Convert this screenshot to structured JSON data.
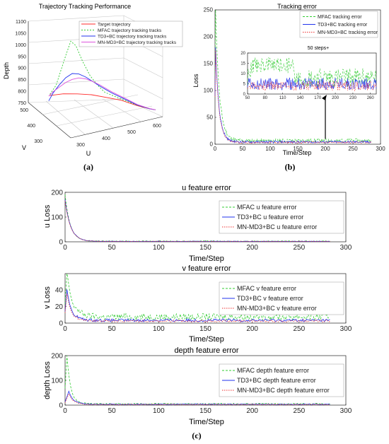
{
  "panel_labels": {
    "a": "(a)",
    "b": "(b)",
    "c": "(c)"
  },
  "colors": {
    "target": "#ff2a2a",
    "mfac": "#33cc33",
    "td3": "#2233ee",
    "mnmd3": "#ee3333",
    "mnmd3_traj": "#dd55dd",
    "axis": "#262626",
    "grid": "#e6e6e6",
    "arrow": "#000000"
  },
  "chart_data": [
    {
      "id": "a",
      "type": "line3d",
      "title": "Trajectory Tracking Performance",
      "xlabel": "U",
      "ylabel": "V",
      "zlabel": "Depth",
      "u_ticks": [
        "300",
        "400",
        "500",
        "600"
      ],
      "v_ticks": [
        "300",
        "400",
        "500"
      ],
      "z_ticks": [
        "750",
        "800",
        "850",
        "900",
        "950",
        "1000",
        "1050",
        "1100"
      ],
      "xlim": [
        250,
        620
      ],
      "ylim": [
        250,
        520
      ],
      "zlim": [
        750,
        1100
      ],
      "legend": "top-right",
      "series": [
        {
          "name": "Target trajectory",
          "u": [
            320,
            360,
            400,
            440,
            480,
            520,
            560,
            590,
            605
          ],
          "v": [
            480,
            470,
            455,
            440,
            420,
            400,
            370,
            350,
            340
          ],
          "depth": [
            800,
            802,
            800,
            795,
            785,
            775,
            760,
            752,
            750
          ]
        },
        {
          "name": "MFAC trajectory tracking tracks",
          "u": [
            320,
            340,
            355,
            370,
            385,
            400,
            420,
            440,
            460,
            480,
            520,
            560,
            590,
            605
          ],
          "v": [
            480,
            478,
            476,
            474,
            470,
            465,
            460,
            450,
            440,
            430,
            400,
            370,
            350,
            340
          ],
          "depth": [
            805,
            840,
            900,
            960,
            1020,
            1000,
            930,
            870,
            830,
            800,
            780,
            762,
            752,
            750
          ]
        },
        {
          "name": "TD3+BC trajectory tracking tracks",
          "u": [
            315,
            330,
            350,
            370,
            390,
            410,
            430,
            450,
            470,
            500,
            530,
            560,
            590,
            605
          ],
          "v": [
            478,
            478,
            476,
            474,
            470,
            466,
            460,
            452,
            444,
            425,
            400,
            372,
            350,
            340
          ],
          "depth": [
            780,
            810,
            840,
            865,
            880,
            875,
            860,
            840,
            820,
            795,
            778,
            762,
            752,
            750
          ]
        },
        {
          "name": "MN-MD3+BC trajectory tracking tracks",
          "u": [
            315,
            330,
            350,
            370,
            390,
            410,
            430,
            450,
            470,
            500,
            530,
            560,
            590,
            605
          ],
          "v": [
            478,
            478,
            476,
            474,
            470,
            466,
            460,
            452,
            444,
            425,
            400,
            372,
            350,
            340
          ],
          "depth": [
            800,
            815,
            830,
            845,
            855,
            858,
            852,
            840,
            825,
            800,
            782,
            764,
            753,
            750
          ]
        }
      ]
    },
    {
      "id": "b",
      "type": "line",
      "title": "Tracking error",
      "xlabel": "Time/Step",
      "ylabel": "Loss",
      "xlim": [
        0,
        300
      ],
      "ylim": [
        0,
        250
      ],
      "xticks": [
        0,
        50,
        100,
        150,
        200,
        250,
        300
      ],
      "yticks": [
        0,
        50,
        100,
        150,
        200,
        250
      ],
      "legend": "top-right",
      "series": [
        {
          "name": "MFAC tracking error",
          "peak": 250,
          "peak_x": 1,
          "decay": 7,
          "base": 8
        },
        {
          "name": "TD3+BC tracking error",
          "peak": 180,
          "peak_x": 1,
          "decay": 6.5,
          "base": 5
        },
        {
          "name": "MN-MD3+BC tracking error",
          "peak": 175,
          "peak_x": 1,
          "decay": 6.3,
          "base": 4
        }
      ],
      "inset": {
        "title": "50 steps+",
        "xlim": [
          50,
          270
        ],
        "ylim": [
          0,
          20
        ],
        "xticks": [
          50,
          80,
          110,
          140,
          170,
          200,
          230,
          260
        ],
        "yticks": [
          0,
          5,
          10,
          15,
          20
        ],
        "arrow_to": [
          200,
          12
        ]
      }
    },
    {
      "id": "c1",
      "type": "line",
      "title": "u feature error",
      "xlabel": "Time/Step",
      "ylabel": "u Loss",
      "xlim": [
        0,
        300
      ],
      "ylim": [
        0,
        200
      ],
      "xticks": [
        0,
        50,
        100,
        150,
        200,
        250,
        300
      ],
      "yticks": [
        0,
        100,
        200
      ],
      "legend": "top-right",
      "series": [
        {
          "name": "MFAC u feature error",
          "peak": 190,
          "peak_x": 0,
          "decay": 5.5,
          "base": 3
        },
        {
          "name": "TD3+BC u feature error",
          "peak": 170,
          "peak_x": 0,
          "decay": 6,
          "base": 2
        },
        {
          "name": "MN-MD3+BC u feature error",
          "peak": 165,
          "peak_x": 0,
          "decay": 6,
          "base": 2
        }
      ]
    },
    {
      "id": "c2",
      "type": "line",
      "title": "v feature error",
      "xlabel": "Time/Step",
      "ylabel": "v Loss",
      "xlim": [
        0,
        300
      ],
      "ylim": [
        0,
        60
      ],
      "xticks": [
        0,
        50,
        100,
        150,
        200,
        250,
        300
      ],
      "yticks": [
        0,
        20,
        40
      ],
      "legend": "top-right",
      "series": [
        {
          "name": "MFAC v feature error",
          "peak": 60,
          "peak_x": 2,
          "decay": 6,
          "base": 9
        },
        {
          "name": "TD3+BC v feature error",
          "peak": 40,
          "peak_x": 2,
          "decay": 5,
          "base": 4
        },
        {
          "name": "MN-MD3+BC v feature error",
          "peak": 35,
          "peak_x": 2,
          "decay": 5,
          "base": 3
        }
      ]
    },
    {
      "id": "c3",
      "type": "line",
      "title": "depth feature error",
      "xlabel": "Time/Step",
      "ylabel": "depth Loss",
      "xlim": [
        0,
        300
      ],
      "ylim": [
        0,
        200
      ],
      "xticks": [
        0,
        50,
        100,
        150,
        200,
        250,
        300
      ],
      "yticks": [
        0,
        100,
        200
      ],
      "legend": "top-right",
      "series": [
        {
          "name": "MFAC depth feature error",
          "peak": 200,
          "peak_x": 2,
          "decay": 4,
          "base": 6
        },
        {
          "name": "TD3+BC depth feature error",
          "peak": 55,
          "peak_x": 4,
          "decay": 5,
          "base": 4
        },
        {
          "name": "MN-MD3+BC depth feature error",
          "peak": 45,
          "peak_x": 4,
          "decay": 5,
          "base": 3
        }
      ]
    }
  ]
}
